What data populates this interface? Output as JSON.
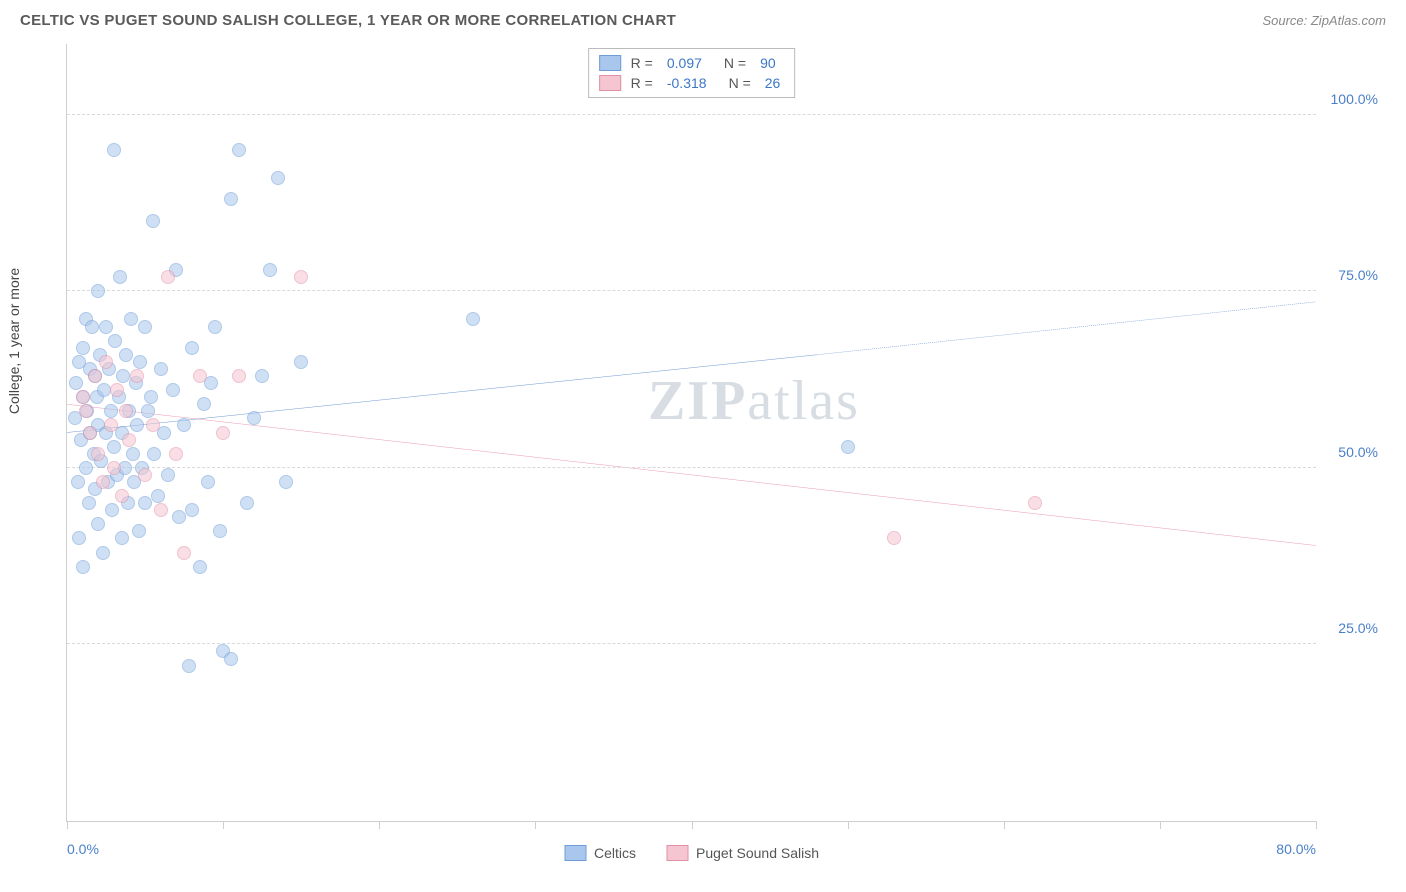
{
  "title": "CELTIC VS PUGET SOUND SALISH COLLEGE, 1 YEAR OR MORE CORRELATION CHART",
  "source": "Source: ZipAtlas.com",
  "ylabel": "College, 1 year or more",
  "watermark": "ZIPatlas",
  "chart": {
    "type": "scatter",
    "xlim": [
      0,
      80
    ],
    "ylim": [
      0,
      110
    ],
    "x_ticks": [
      0,
      10,
      20,
      30,
      40,
      50,
      60,
      70,
      80
    ],
    "x_tick_labels": {
      "0": "0.0%",
      "80": "80.0%"
    },
    "y_ticks": [
      25,
      50,
      75,
      100
    ],
    "y_tick_labels": {
      "25": "25.0%",
      "50": "50.0%",
      "75": "75.0%",
      "100": "100.0%"
    },
    "background_color": "#ffffff",
    "grid_color": "#d9d9d9",
    "point_radius": 7,
    "point_opacity": 0.55,
    "series": [
      {
        "name": "Celtics",
        "label": "Celtics",
        "color_fill": "#a9c7ec",
        "color_stroke": "#6f9dd8",
        "line_color": "#2f6fc0",
        "R": "0.097",
        "N": "90",
        "trend": {
          "x1": 0,
          "y1": 55,
          "x2_solid": 48,
          "y2_solid": 66,
          "x2": 80,
          "y2": 73.5,
          "dashed_from": 48
        },
        "points": [
          [
            0.5,
            57
          ],
          [
            0.6,
            62
          ],
          [
            0.7,
            48
          ],
          [
            0.8,
            65
          ],
          [
            0.8,
            40
          ],
          [
            0.9,
            54
          ],
          [
            1.0,
            60
          ],
          [
            1.0,
            67
          ],
          [
            1.0,
            36
          ],
          [
            1.2,
            71
          ],
          [
            1.2,
            50
          ],
          [
            1.3,
            58
          ],
          [
            1.4,
            45
          ],
          [
            1.5,
            64
          ],
          [
            1.5,
            55
          ],
          [
            1.6,
            70
          ],
          [
            1.7,
            52
          ],
          [
            1.8,
            63
          ],
          [
            1.8,
            47
          ],
          [
            1.9,
            60
          ],
          [
            2.0,
            75
          ],
          [
            2.0,
            56
          ],
          [
            2.0,
            42
          ],
          [
            2.1,
            66
          ],
          [
            2.2,
            51
          ],
          [
            2.3,
            38
          ],
          [
            2.4,
            61
          ],
          [
            2.5,
            70
          ],
          [
            2.5,
            55
          ],
          [
            2.6,
            48
          ],
          [
            2.7,
            64
          ],
          [
            2.8,
            58
          ],
          [
            2.9,
            44
          ],
          [
            3.0,
            95
          ],
          [
            3.0,
            53
          ],
          [
            3.1,
            68
          ],
          [
            3.2,
            49
          ],
          [
            3.3,
            60
          ],
          [
            3.4,
            77
          ],
          [
            3.5,
            40
          ],
          [
            3.5,
            55
          ],
          [
            3.6,
            63
          ],
          [
            3.7,
            50
          ],
          [
            3.8,
            66
          ],
          [
            3.9,
            45
          ],
          [
            4.0,
            58
          ],
          [
            4.1,
            71
          ],
          [
            4.2,
            52
          ],
          [
            4.3,
            48
          ],
          [
            4.4,
            62
          ],
          [
            4.5,
            56
          ],
          [
            4.6,
            41
          ],
          [
            4.7,
            65
          ],
          [
            4.8,
            50
          ],
          [
            5.0,
            70
          ],
          [
            5.0,
            45
          ],
          [
            5.2,
            58
          ],
          [
            5.4,
            60
          ],
          [
            5.5,
            85
          ],
          [
            5.6,
            52
          ],
          [
            5.8,
            46
          ],
          [
            6.0,
            64
          ],
          [
            6.2,
            55
          ],
          [
            6.5,
            49
          ],
          [
            6.8,
            61
          ],
          [
            7.0,
            78
          ],
          [
            7.2,
            43
          ],
          [
            7.5,
            56
          ],
          [
            7.8,
            22
          ],
          [
            8.0,
            67
          ],
          [
            8.0,
            44
          ],
          [
            8.5,
            36
          ],
          [
            8.8,
            59
          ],
          [
            9.0,
            48
          ],
          [
            9.2,
            62
          ],
          [
            9.5,
            70
          ],
          [
            9.8,
            41
          ],
          [
            10.0,
            24
          ],
          [
            10.5,
            23
          ],
          [
            10.5,
            88
          ],
          [
            11.0,
            95
          ],
          [
            11.5,
            45
          ],
          [
            12.0,
            57
          ],
          [
            12.5,
            63
          ],
          [
            13.0,
            78
          ],
          [
            13.5,
            91
          ],
          [
            14.0,
            48
          ],
          [
            15.0,
            65
          ],
          [
            26.0,
            71
          ],
          [
            50.0,
            53
          ]
        ]
      },
      {
        "name": "PugetSoundSalish",
        "label": "Puget Sound Salish",
        "color_fill": "#f5c6d1",
        "color_stroke": "#e390a6",
        "line_color": "#e36f93",
        "R": "-0.318",
        "N": "26",
        "trend": {
          "x1": 0,
          "y1": 59,
          "x2_solid": 80,
          "y2_solid": 39,
          "x2": 80,
          "y2": 39,
          "dashed_from": 80
        },
        "points": [
          [
            1.0,
            60
          ],
          [
            1.2,
            58
          ],
          [
            1.5,
            55
          ],
          [
            1.8,
            63
          ],
          [
            2.0,
            52
          ],
          [
            2.3,
            48
          ],
          [
            2.5,
            65
          ],
          [
            2.8,
            56
          ],
          [
            3.0,
            50
          ],
          [
            3.2,
            61
          ],
          [
            3.5,
            46
          ],
          [
            3.8,
            58
          ],
          [
            4.0,
            54
          ],
          [
            4.5,
            63
          ],
          [
            5.0,
            49
          ],
          [
            5.5,
            56
          ],
          [
            6.0,
            44
          ],
          [
            6.5,
            77
          ],
          [
            7.0,
            52
          ],
          [
            7.5,
            38
          ],
          [
            8.5,
            63
          ],
          [
            10.0,
            55
          ],
          [
            11.0,
            63
          ],
          [
            15.0,
            77
          ],
          [
            53.0,
            40
          ],
          [
            62.0,
            45
          ]
        ]
      }
    ]
  },
  "legend_top": {
    "R_label": "R =",
    "N_label": "N ="
  },
  "legend_bottom": [
    {
      "key": "Celtics",
      "series": 0
    },
    {
      "key": "Puget Sound Salish",
      "series": 1
    }
  ]
}
